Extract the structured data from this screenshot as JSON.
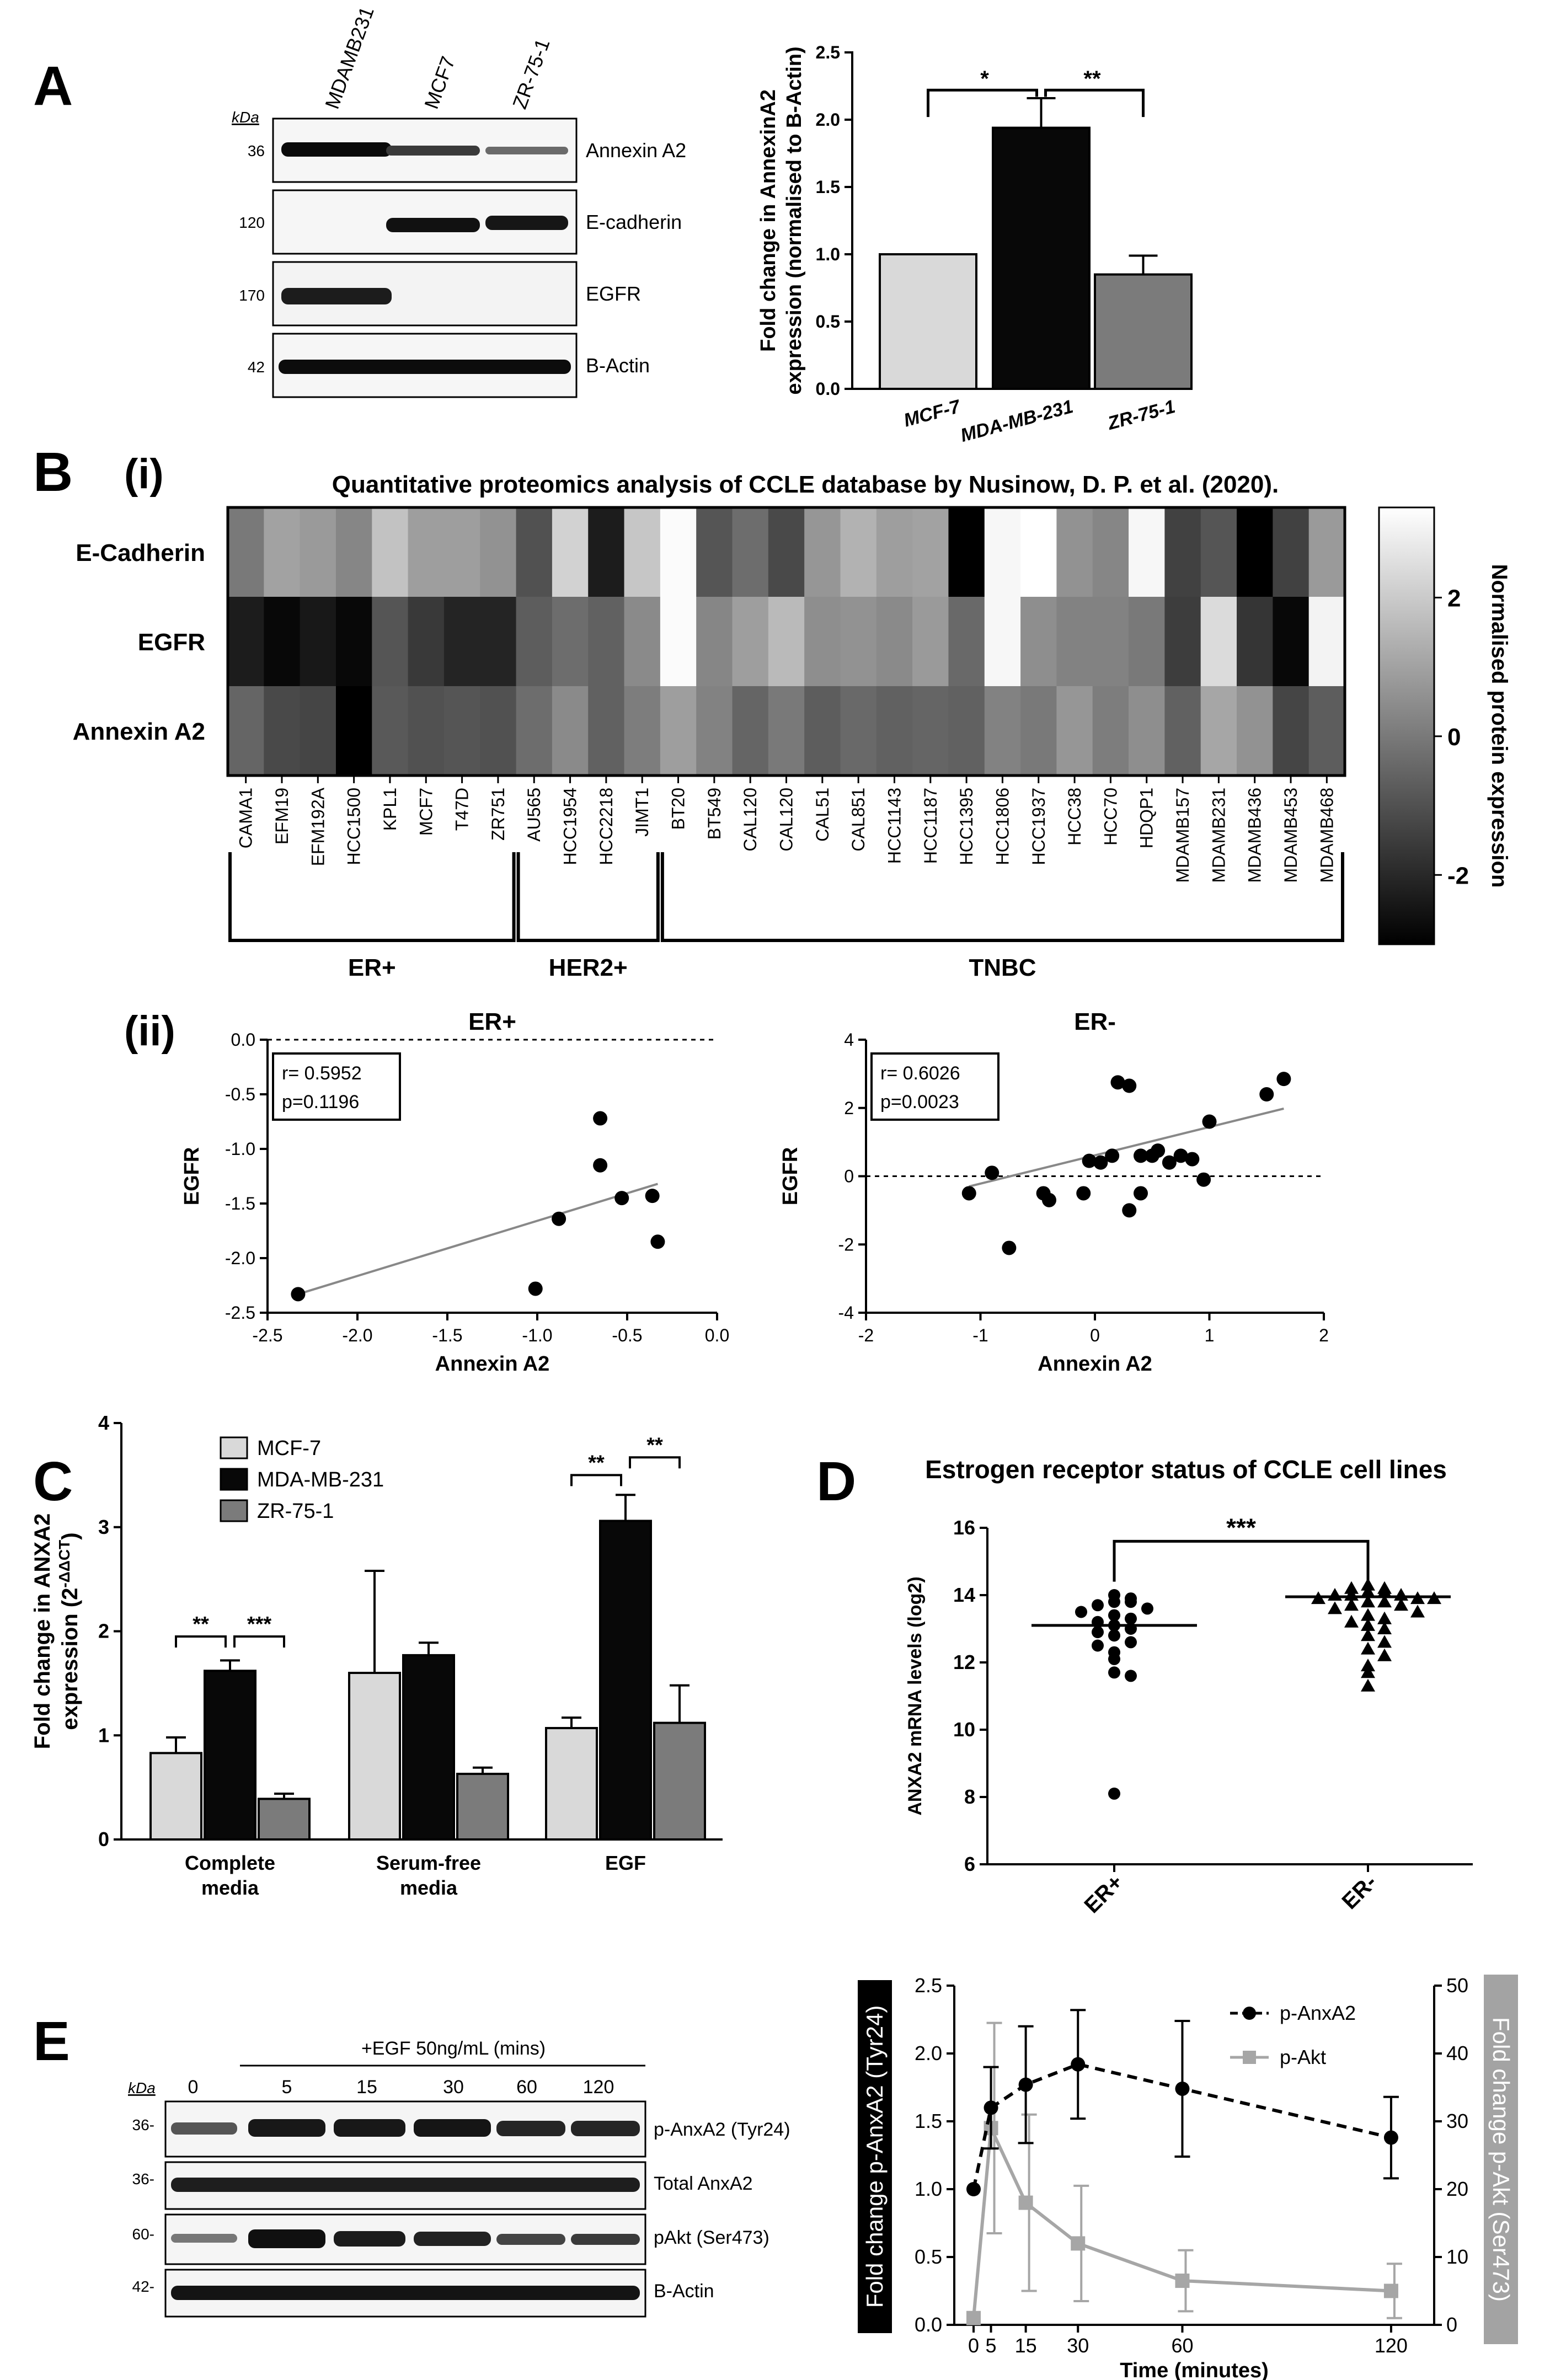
{
  "panels": {
    "A": "A",
    "B": "B",
    "Bi": "(i)",
    "Bii": "(ii)",
    "C": "C",
    "D": "D",
    "E": "E"
  },
  "colors": {
    "light": "#d9d9d9",
    "dark": "#080808",
    "mid": "#7b7b7b",
    "gray_line": "#a6a6a6",
    "black": "#000000"
  },
  "blotA": {
    "unit": "kDa",
    "lanes": [
      "MDAMB231",
      "MCF7",
      "ZR-75-1"
    ],
    "rows": [
      {
        "label": "Annexin A2",
        "mw": "36"
      },
      {
        "label": "E-cadherin",
        "mw": "120"
      },
      {
        "label": "EGFR",
        "mw": "170"
      },
      {
        "label": "B-Actin",
        "mw": "42"
      }
    ]
  },
  "heatmap": {
    "title": "Quantitative proteomics analysis of CCLE database by Nusinow, D. P. et al. (2020).",
    "rows": [
      "E-Cadherin",
      "EGFR",
      "Annexin A2"
    ],
    "cols": [
      "CAMA1",
      "EFM19",
      "EFM192A",
      "HCC1500",
      "KPL1",
      "MCF7",
      "T47D",
      "ZR751",
      "AU565",
      "HCC1954",
      "HCC2218",
      "JIMT1",
      "BT20",
      "BT549",
      "CAL120",
      "CAL120",
      "CAL51",
      "CAL851",
      "HCC1143",
      "HCC1187",
      "HCC1395",
      "HCC1806",
      "HCC1937",
      "HCC38",
      "HCC70",
      "HDQP1",
      "MDAMB157",
      "MDAMB231",
      "MDAMB436",
      "MDAMB453",
      "MDAMB468"
    ],
    "groups": [
      {
        "label": "ER+",
        "from": 0,
        "to": 7
      },
      {
        "label": "HER2+",
        "from": 8,
        "to": 11
      },
      {
        "label": "TNBC",
        "from": 12,
        "to": 30
      }
    ],
    "colorbar": {
      "label": "Normalised protein expression",
      "ticks": [
        "2",
        "0",
        "-2"
      ],
      "range": [
        -3,
        3.3
      ]
    },
    "matrix": [
      [
        0.0,
        1.0,
        0.8,
        0.3,
        1.8,
        0.9,
        0.9,
        0.6,
        -1.0,
        2.2,
        -2.3,
        1.9,
        3.2,
        -0.9,
        -0.3,
        -1.2,
        0.7,
        1.4,
        0.9,
        1.0,
        -3.0,
        3.1,
        3.3,
        0.6,
        0.3,
        3.1,
        -1.4,
        -0.9,
        -3.0,
        -1.4,
        0.8
      ],
      [
        -2.3,
        -2.8,
        -2.4,
        -2.8,
        -0.9,
        -1.6,
        -2.1,
        -2.1,
        -0.7,
        -0.3,
        -0.6,
        0.4,
        3.2,
        0.3,
        0.9,
        1.6,
        0.5,
        0.6,
        0.4,
        0.8,
        -0.4,
        3.1,
        0.5,
        0.2,
        0.2,
        0.0,
        -1.5,
        2.4,
        -1.7,
        -2.8,
        3.0
      ],
      [
        -0.5,
        -1.2,
        -1.3,
        -3.0,
        -0.8,
        -1.0,
        -0.9,
        -1.0,
        -0.3,
        0.4,
        -0.6,
        0.1,
        0.9,
        0.2,
        -0.5,
        0.0,
        -0.7,
        -0.4,
        -0.6,
        -0.5,
        -0.6,
        0.2,
        0.0,
        0.7,
        0.1,
        0.5,
        -0.6,
        1.1,
        0.6,
        -1.3,
        -0.7
      ]
    ]
  },
  "scatterER_pos": {
    "title": "ER+",
    "xlabel": "Annexin A2",
    "ylabel": "EGFR",
    "xlim": [
      -2.5,
      0.0
    ],
    "ylim": [
      -2.5,
      0.0
    ],
    "xticks": [
      "-2.5",
      "-2.0",
      "-1.5",
      "-1.0",
      "-0.5",
      "0.0"
    ],
    "yticks": [
      "0.0",
      "-0.5",
      "-1.0",
      "-1.5",
      "-2.0",
      "-2.5"
    ],
    "stat_r": "r= 0.5952",
    "stat_p": "p=0.1196",
    "points": [
      [
        -2.33,
        -2.33
      ],
      [
        -1.01,
        -2.28
      ],
      [
        -0.88,
        -1.64
      ],
      [
        -0.65,
        -0.72
      ],
      [
        -0.65,
        -1.15
      ],
      [
        -0.53,
        -1.45
      ],
      [
        -0.36,
        -1.43
      ],
      [
        -0.33,
        -1.85
      ]
    ],
    "fit": [
      [
        -2.33,
        -2.33
      ],
      [
        -0.33,
        -1.32
      ]
    ]
  },
  "scatterER_neg": {
    "title": "ER-",
    "xlabel": "Annexin A2",
    "ylabel": "EGFR",
    "xlim": [
      -2,
      2
    ],
    "ylim": [
      -4,
      4
    ],
    "xticks": [
      "-2",
      "-1",
      "0",
      "1",
      "2"
    ],
    "yticks": [
      "4",
      "2",
      "0",
      "-2",
      "-4"
    ],
    "stat_r": "r= 0.6026",
    "stat_p": "p=0.0023",
    "points": [
      [
        -1.1,
        -0.5
      ],
      [
        -0.9,
        0.1
      ],
      [
        -0.75,
        -2.1
      ],
      [
        -0.45,
        -0.5
      ],
      [
        -0.4,
        -0.7
      ],
      [
        -0.1,
        -0.5
      ],
      [
        -0.05,
        0.45
      ],
      [
        0.05,
        0.4
      ],
      [
        0.15,
        0.6
      ],
      [
        0.2,
        2.75
      ],
      [
        0.3,
        2.65
      ],
      [
        0.3,
        -1.0
      ],
      [
        0.4,
        -0.5
      ],
      [
        0.4,
        0.6
      ],
      [
        0.5,
        0.6
      ],
      [
        0.55,
        0.75
      ],
      [
        0.65,
        0.4
      ],
      [
        0.75,
        0.6
      ],
      [
        0.85,
        0.5
      ],
      [
        0.95,
        -0.1
      ],
      [
        1.0,
        1.6
      ],
      [
        1.5,
        2.4
      ],
      [
        1.65,
        2.85
      ]
    ],
    "fit": [
      [
        -1.1,
        -0.3
      ],
      [
        1.65,
        1.98
      ]
    ]
  },
  "chartA": {
    "ylabel_line1": "Fold change in AnnexinA2",
    "ylabel_line2": "expression (normalised to B-Actin)",
    "ylim": [
      0,
      2.5
    ],
    "yticks": [
      "0.0",
      "0.5",
      "1.0",
      "1.5",
      "2.0",
      "2.5"
    ],
    "categories": [
      "MCF-7",
      "MDA-MB-231",
      "ZR-75-1"
    ],
    "values": [
      1.0,
      1.94,
      0.85
    ],
    "errors": [
      0,
      0.22,
      0.14
    ],
    "sig": [
      "*",
      "**"
    ]
  },
  "chartC": {
    "ylabel_line1": "Fold change in ANXA2",
    "ylabel_line2": "expression (2",
    "ylabel_sup": "-ΔΔCT",
    "ylabel_close": ")",
    "ylim": [
      0,
      4
    ],
    "yticks": [
      "0",
      "1",
      "2",
      "3",
      "4"
    ],
    "groups": [
      {
        "line1": "Complete",
        "line2": "media"
      },
      {
        "line1": "Serum-free",
        "line2": "media"
      },
      {
        "line1": "EGF",
        "line2": ""
      }
    ],
    "series": [
      {
        "name": "MCF-7",
        "values": [
          0.83,
          1.6,
          1.07
        ],
        "errors": [
          0.15,
          0.98,
          0.1
        ]
      },
      {
        "name": "MDA-MB-231",
        "values": [
          1.62,
          1.77,
          3.06
        ],
        "errors": [
          0.1,
          0.12,
          0.25
        ]
      },
      {
        "name": "ZR-75-1",
        "values": [
          0.39,
          0.63,
          1.12
        ],
        "errors": [
          0.05,
          0.06,
          0.36
        ]
      }
    ],
    "sig": [
      {
        "group": "Complete media",
        "pair": "MCF-7 vs MDA-MB-231",
        "mark": "**"
      },
      {
        "group": "Complete media",
        "pair": "MDA-MB-231 vs ZR-75-1",
        "mark": "***"
      },
      {
        "group": "EGF",
        "pair": "MCF-7 vs MDA-MB-231",
        "mark": "**"
      },
      {
        "group": "EGF",
        "pair": "MDA-MB-231 vs ZR-75-1",
        "mark": "**"
      }
    ]
  },
  "chartD": {
    "title": "Estrogen receptor status of CCLE cell lines",
    "ylabel": "ANXA2 mRNA levels (log2)",
    "ylim": [
      6,
      16
    ],
    "yticks": [
      "16",
      "14",
      "12",
      "10",
      "8",
      "6"
    ],
    "categories": [
      "ER+",
      "ER-"
    ],
    "medians": [
      13.1,
      13.95
    ],
    "sig": "***",
    "er_pos": [
      14.0,
      13.9,
      13.8,
      13.8,
      13.7,
      13.6,
      13.5,
      13.4,
      13.3,
      13.2,
      13.1,
      13.0,
      12.9,
      12.8,
      12.6,
      12.5,
      12.3,
      12.1,
      11.7,
      11.6,
      8.1
    ],
    "er_neg": [
      14.3,
      14.2,
      14.2,
      14.1,
      14.1,
      14.0,
      14.0,
      14.0,
      13.9,
      13.9,
      13.9,
      13.8,
      13.8,
      13.7,
      13.7,
      13.6,
      13.5,
      13.4,
      13.3,
      13.2,
      13.1,
      13.0,
      12.8,
      12.6,
      12.4,
      12.2,
      11.9,
      11.7,
      11.3
    ]
  },
  "blotE": {
    "unit": "kDa",
    "treatment": "+EGF 50ng/mL (mins)",
    "lanes": [
      "0",
      "5",
      "15",
      "30",
      "60",
      "120"
    ],
    "rows": [
      {
        "label": "p-AnxA2 (Tyr24)",
        "mw": "36-"
      },
      {
        "label": "Total AnxA2",
        "mw": "36-"
      },
      {
        "label": "pAkt (Ser473)",
        "mw": "60-"
      },
      {
        "label": "B-Actin",
        "mw": "42-"
      }
    ]
  },
  "chartE": {
    "xlabel": "Time (minutes)",
    "ylabel_left": "Fold change p-AnxA2 (Tyr24)",
    "ylabel_right": "Fold change p-Akt (Ser473)",
    "yleft_lim": [
      0,
      2.5
    ],
    "yright_lim": [
      0,
      50
    ],
    "yleft_ticks": [
      "0.0",
      "0.5",
      "1.0",
      "1.5",
      "2.0",
      "2.5"
    ],
    "yright_ticks": [
      "0",
      "10",
      "20",
      "30",
      "40",
      "50"
    ],
    "x": [
      0,
      5,
      15,
      30,
      60,
      120
    ],
    "xticks": [
      "0",
      "5",
      "15",
      "30",
      "60",
      "120"
    ],
    "series": [
      {
        "name": "p-AnxA2",
        "values": [
          1.0,
          1.6,
          1.77,
          1.92,
          1.74,
          1.38
        ],
        "errors": [
          0,
          0.3,
          0.43,
          0.4,
          0.5,
          0.3
        ]
      },
      {
        "name": "p-Akt",
        "values": [
          1,
          29,
          18,
          12,
          6.5,
          5
        ],
        "errors": [
          0,
          15.5,
          13,
          8.5,
          4.5,
          4
        ]
      }
    ]
  }
}
